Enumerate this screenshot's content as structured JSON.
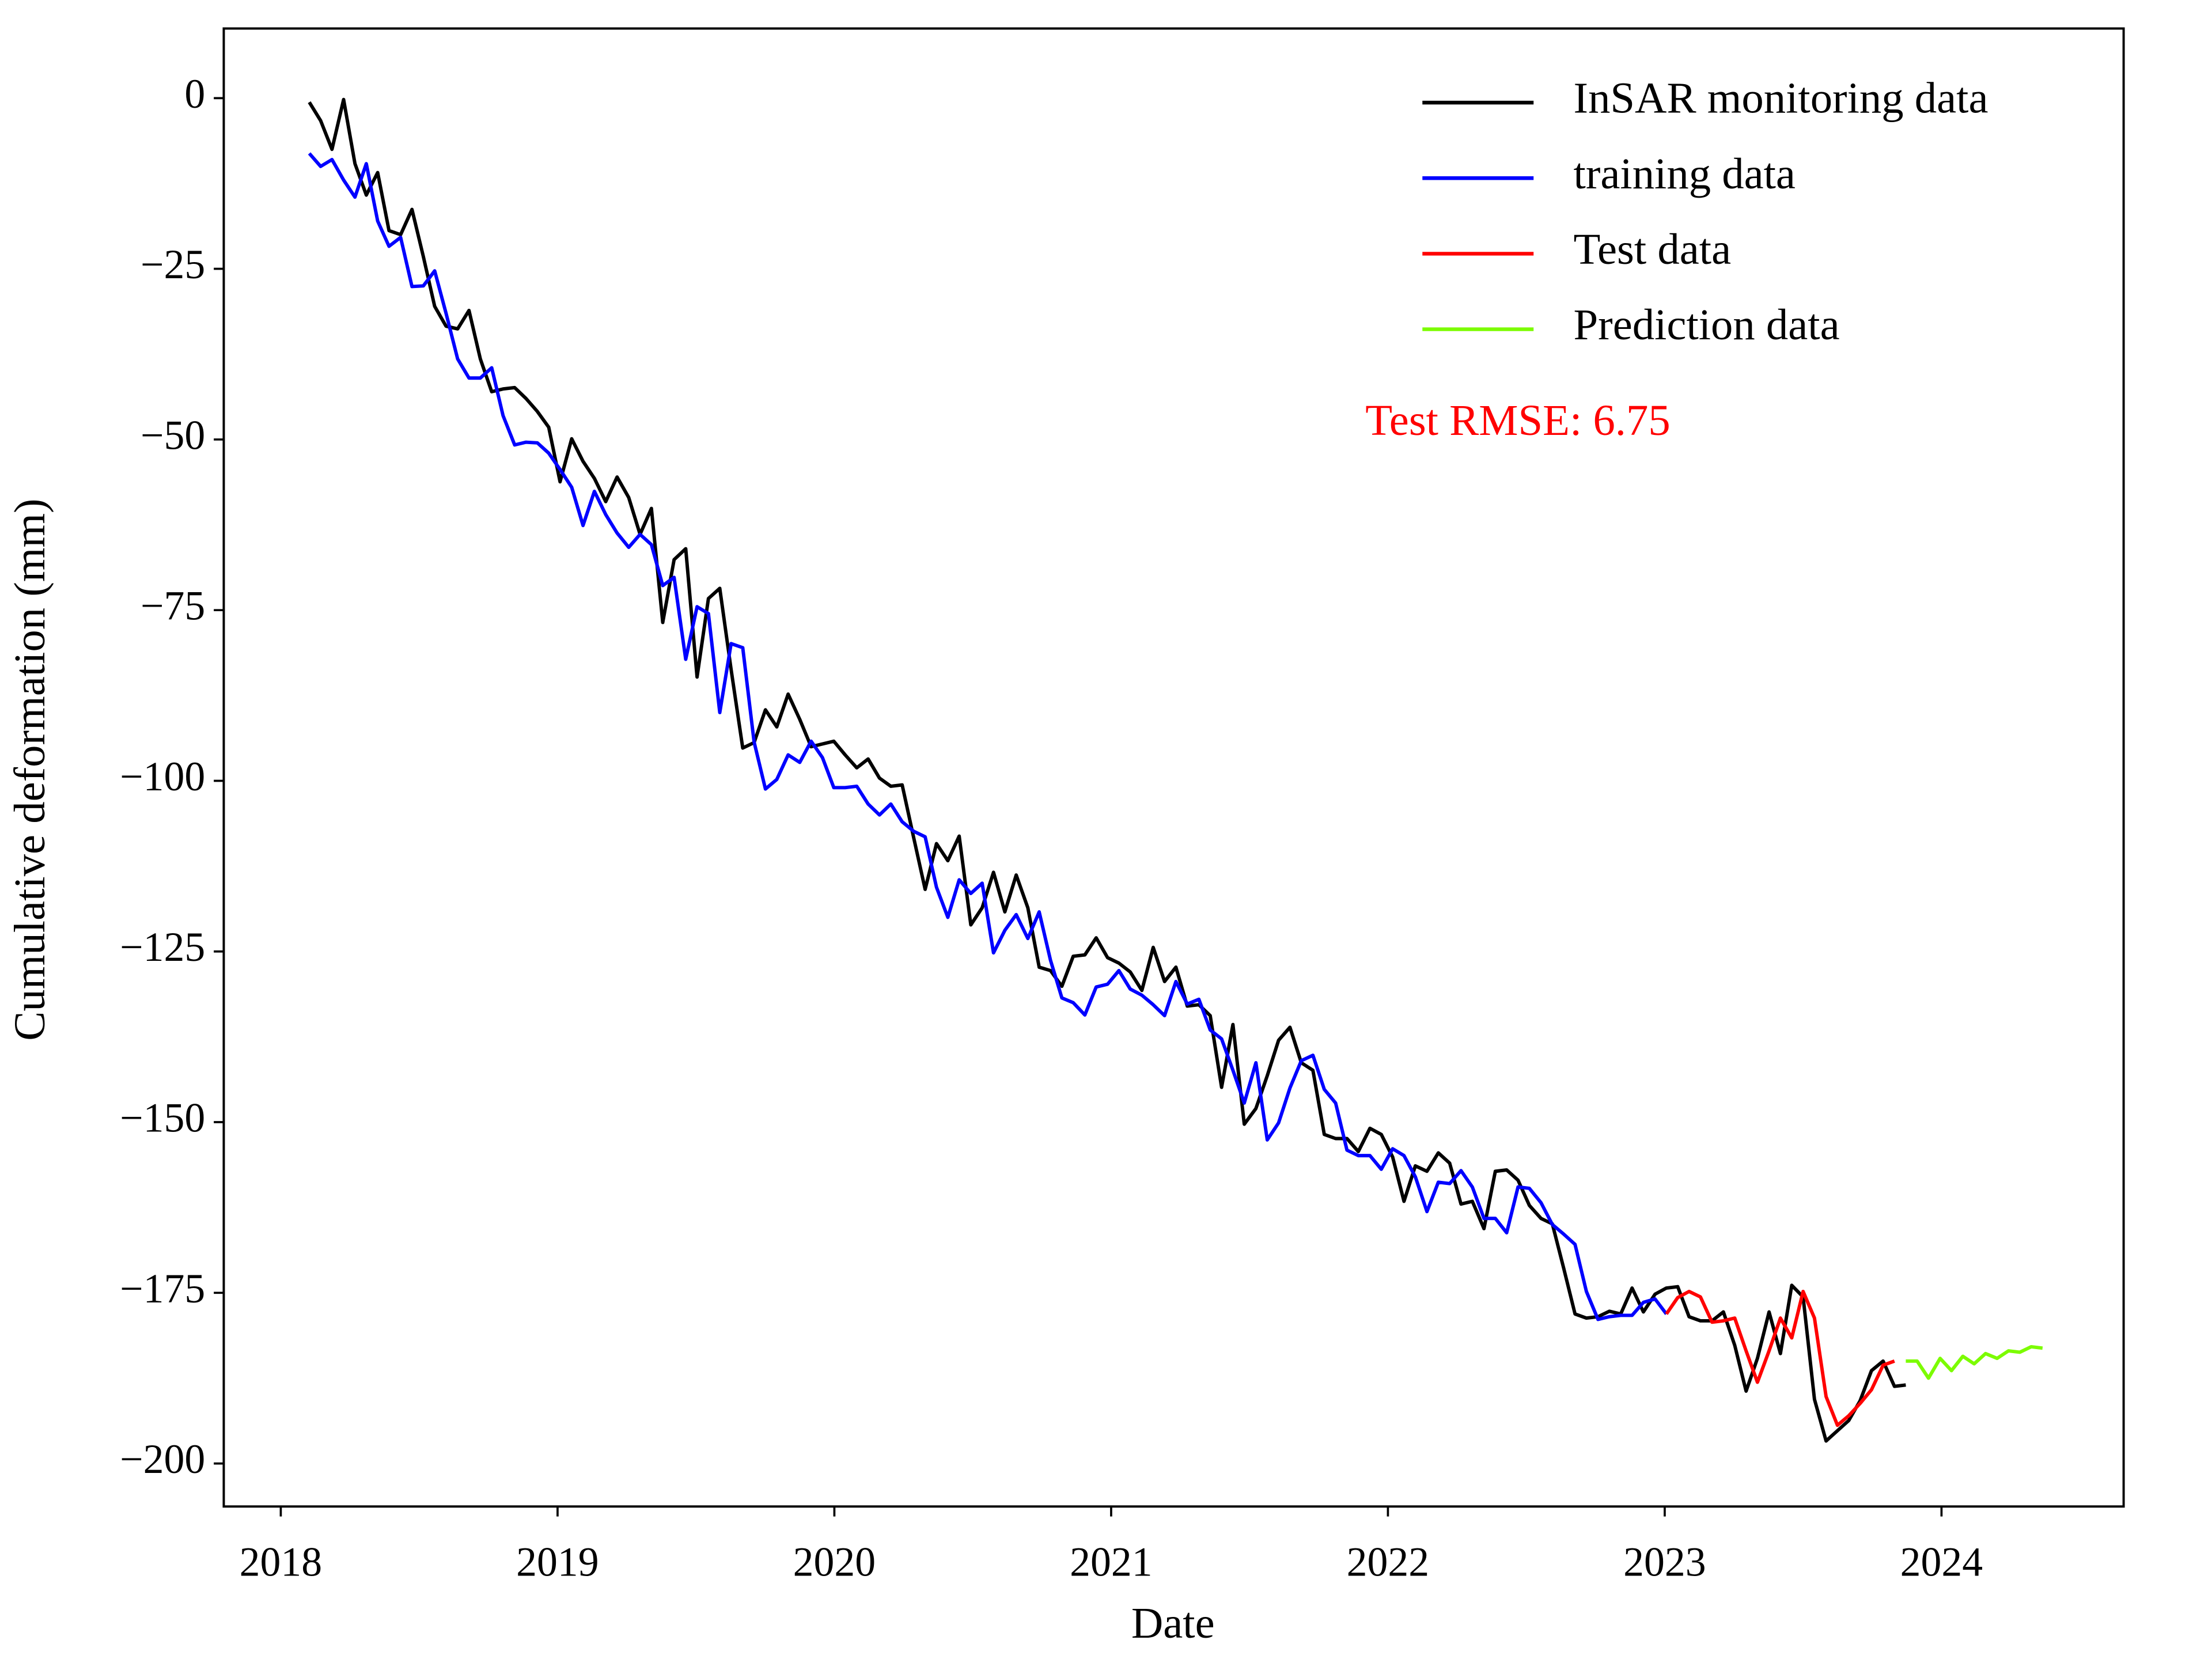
{
  "chart_data": {
    "type": "line",
    "xlabel": "Date",
    "ylabel": "Cumulative deformation (mm)",
    "annotation": "Test RMSE: 6.75",
    "annotation_color": "#ff0000",
    "legend": "upper right",
    "xlim": [
      2017.794,
      2024.658
    ],
    "xticks": [
      2018,
      2019,
      2020,
      2021,
      2022,
      2023,
      2024
    ],
    "ylim": [
      -206.3,
      10.2
    ],
    "yticks": [
      0,
      {
        "value": -25,
        "label": "−25"
      },
      {
        "value": -50,
        "label": "−50"
      },
      {
        "value": -75,
        "label": "−75"
      },
      {
        "value": -100,
        "label": "−100"
      },
      {
        "value": -125,
        "label": "−125"
      },
      {
        "value": -150,
        "label": "−150"
      },
      {
        "value": -175,
        "label": "−175"
      },
      {
        "value": -200,
        "label": "−200"
      }
    ],
    "x": [
      2018.103,
      2018.144,
      2018.185,
      2018.227,
      2018.268,
      2018.309,
      2018.35,
      2018.391,
      2018.433,
      2018.474,
      2018.515,
      2018.556,
      2018.597,
      2018.639,
      2018.68,
      2018.721,
      2018.762,
      2018.803,
      2018.845,
      2018.886,
      2018.927,
      2018.968,
      2019.009,
      2019.051,
      2019.092,
      2019.133,
      2019.174,
      2019.215,
      2019.257,
      2019.298,
      2019.339,
      2019.38,
      2019.421,
      2019.463,
      2019.504,
      2019.545,
      2019.586,
      2019.627,
      2019.669,
      2019.71,
      2019.751,
      2019.792,
      2019.833,
      2019.875,
      2019.916,
      2019.957,
      2019.998,
      2020.039,
      2020.081,
      2020.122,
      2020.163,
      2020.204,
      2020.245,
      2020.287,
      2020.328,
      2020.369,
      2020.41,
      2020.451,
      2020.493,
      2020.534,
      2020.575,
      2020.616,
      2020.657,
      2020.699,
      2020.74,
      2020.781,
      2020.822,
      2020.863,
      2020.905,
      2020.946,
      2020.987,
      2021.028,
      2021.069,
      2021.111,
      2021.152,
      2021.193,
      2021.234,
      2021.275,
      2021.317,
      2021.358,
      2021.399,
      2021.44,
      2021.481,
      2021.523,
      2021.564,
      2021.605,
      2021.646,
      2021.687,
      2021.729,
      2021.77,
      2021.811,
      2021.852,
      2021.893,
      2021.935,
      2021.976,
      2022.017,
      2022.058,
      2022.099,
      2022.141,
      2022.182,
      2022.223,
      2022.264,
      2022.305,
      2022.347,
      2022.388,
      2022.429,
      2022.47,
      2022.511,
      2022.553,
      2022.594,
      2022.635,
      2022.676,
      2022.717,
      2022.759,
      2022.8,
      2022.841,
      2022.882,
      2022.923,
      2022.965,
      2023.006,
      2023.047,
      2023.088,
      2023.129,
      2023.171,
      2023.212,
      2023.253,
      2023.294,
      2023.335,
      2023.377,
      2023.418,
      2023.459,
      2023.5,
      2023.541,
      2023.583,
      2023.624,
      2023.665,
      2023.706,
      2023.747,
      2023.789,
      2023.83,
      2023.871,
      2023.912,
      2023.953,
      2023.995,
      2024.036,
      2024.077,
      2024.118,
      2024.159,
      2024.201,
      2024.242,
      2024.283,
      2024.324,
      2024.365
    ],
    "series": [
      {
        "name": "InSAR monitoring data",
        "color": "#000000",
        "values": [
          -0.6,
          -3.3,
          -7.5,
          -0.2,
          -9.6,
          -14.2,
          -10.9,
          -19.4,
          -20,
          -16.3,
          -23.2,
          -30.5,
          -33.4,
          -33.8,
          -31.1,
          -38.2,
          -43,
          -42.6,
          -42.4,
          -44,
          -45.9,
          -48.2,
          -56.2,
          -49.9,
          -53.2,
          -55.7,
          -59.1,
          -55.5,
          -58.5,
          -63.9,
          -60.1,
          -76.8,
          -67.6,
          -66,
          -84.8,
          -73.3,
          -71.8,
          -83.7,
          -95.2,
          -94.4,
          -89.6,
          -92.1,
          -87.3,
          -91,
          -95,
          -94.6,
          -94.2,
          -96.2,
          -98.1,
          -96.8,
          -99.6,
          -100.8,
          -100.6,
          -108.4,
          -115.9,
          -109.2,
          -111.7,
          -108.1,
          -121.1,
          -118.6,
          -113.4,
          -119.2,
          -113.8,
          -118.6,
          -127.3,
          -127.8,
          -130.1,
          -125.7,
          -125.5,
          -123,
          -125.9,
          -126.7,
          -128,
          -130.7,
          -124.4,
          -129.4,
          -127.3,
          -133,
          -132.8,
          -134.4,
          -144.9,
          -135.7,
          -150.3,
          -148,
          -143.2,
          -138,
          -136.1,
          -141.3,
          -142.4,
          -151.8,
          -152.4,
          -152.4,
          -154.3,
          -150.9,
          -151.8,
          -155.1,
          -161.6,
          -156.4,
          -157.2,
          -154.5,
          -156,
          -162,
          -161.6,
          -165.6,
          -157.2,
          -157,
          -158.5,
          -162.2,
          -164.1,
          -164.9,
          -171.4,
          -178.1,
          -178.7,
          -178.5,
          -177.7,
          -178.1,
          -174.3,
          -177.8,
          -175.2,
          -174.3,
          -174.1,
          -178.5,
          -179.1,
          -179.1,
          -177.8,
          -182.7,
          -189.4,
          -184.6,
          -177.8,
          -183.9,
          -173.9,
          -175.6,
          -190.6,
          -196.7,
          -195.2,
          -193.7,
          -190.8,
          -186.4,
          -185,
          -188.7,
          -188.5,
          null,
          null,
          null,
          null,
          null,
          null,
          null,
          null,
          null,
          null,
          null,
          null
        ]
      },
      {
        "name": "training data",
        "color": "#0000ff",
        "values": [
          -8.1,
          -10,
          -9,
          -12,
          -14.5,
          -9.6,
          -18,
          -21.7,
          -20.4,
          -27.6,
          -27.5,
          -25.3,
          -31.5,
          -38.2,
          -41,
          -41,
          -39.5,
          -46.5,
          -50.8,
          -50.4,
          -50.5,
          -52,
          -54.4,
          -57,
          -62.6,
          -57.6,
          -61,
          -63.7,
          -65.8,
          -63.9,
          -65.4,
          -71.4,
          -70.2,
          -82.2,
          -74.5,
          -75.5,
          -90,
          -79.9,
          -80.5,
          -94.3,
          -101.2,
          -99.8,
          -96.2,
          -97.3,
          -94.2,
          -96.6,
          -101,
          -101,
          -100.8,
          -103.4,
          -105,
          -103.4,
          -106,
          -107.4,
          -108.2,
          -115.6,
          -120,
          -114.5,
          -116.5,
          -115,
          -125.2,
          -121.9,
          -119.6,
          -123.1,
          -119.2,
          -126.3,
          -131.8,
          -132.5,
          -134.3,
          -130.2,
          -129.8,
          -127.8,
          -130.5,
          -131.4,
          -132.8,
          -134.4,
          -129.4,
          -132.7,
          -132,
          -136.5,
          -137.8,
          -142.4,
          -147.2,
          -141.3,
          -152.6,
          -150.1,
          -145,
          -141,
          -140.2,
          -145.2,
          -147.2,
          -154.1,
          -154.9,
          -154.9,
          -156.9,
          -153.9,
          -154.9,
          -158,
          -163.1,
          -158.8,
          -159,
          -157.1,
          -159.5,
          -164.1,
          -164.1,
          -166.2,
          -159.5,
          -159.7,
          -161.8,
          -165,
          -166.4,
          -167.9,
          -174.8,
          -178.9,
          -178.5,
          -178.3,
          -178.3,
          -176.4,
          -175.9,
          -178.1,
          null,
          null,
          null,
          null,
          null,
          null,
          null,
          null,
          null,
          null,
          null,
          null,
          null,
          null,
          null,
          null,
          null,
          null,
          null,
          null,
          null,
          null,
          null,
          null,
          null,
          null,
          null,
          null,
          null,
          null,
          null,
          null,
          null
        ]
      },
      {
        "name": "Test data",
        "color": "#ff0000",
        "values": [
          null,
          null,
          null,
          null,
          null,
          null,
          null,
          null,
          null,
          null,
          null,
          null,
          null,
          null,
          null,
          null,
          null,
          null,
          null,
          null,
          null,
          null,
          null,
          null,
          null,
          null,
          null,
          null,
          null,
          null,
          null,
          null,
          null,
          null,
          null,
          null,
          null,
          null,
          null,
          null,
          null,
          null,
          null,
          null,
          null,
          null,
          null,
          null,
          null,
          null,
          null,
          null,
          null,
          null,
          null,
          null,
          null,
          null,
          null,
          null,
          null,
          null,
          null,
          null,
          null,
          null,
          null,
          null,
          null,
          null,
          null,
          null,
          null,
          null,
          null,
          null,
          null,
          null,
          null,
          null,
          null,
          null,
          null,
          null,
          null,
          null,
          null,
          null,
          null,
          null,
          null,
          null,
          null,
          null,
          null,
          null,
          null,
          null,
          null,
          null,
          null,
          null,
          null,
          null,
          null,
          null,
          null,
          null,
          null,
          null,
          null,
          null,
          null,
          null,
          null,
          null,
          null,
          null,
          null,
          -178.1,
          -175.7,
          -174.8,
          -175.6,
          -179.3,
          -179.1,
          -178.7,
          -183.5,
          -188.1,
          -183.5,
          -178.7,
          -181.6,
          -174.8,
          -178.7,
          -190.2,
          -194.4,
          -193,
          -191.2,
          -189.2,
          -185.6,
          -185,
          null,
          null,
          null,
          null,
          null,
          null,
          null,
          null,
          null,
          null,
          null,
          null,
          null
        ]
      },
      {
        "name": "Prediction data",
        "color": "#7cfc00",
        "values": [
          null,
          null,
          null,
          null,
          null,
          null,
          null,
          null,
          null,
          null,
          null,
          null,
          null,
          null,
          null,
          null,
          null,
          null,
          null,
          null,
          null,
          null,
          null,
          null,
          null,
          null,
          null,
          null,
          null,
          null,
          null,
          null,
          null,
          null,
          null,
          null,
          null,
          null,
          null,
          null,
          null,
          null,
          null,
          null,
          null,
          null,
          null,
          null,
          null,
          null,
          null,
          null,
          null,
          null,
          null,
          null,
          null,
          null,
          null,
          null,
          null,
          null,
          null,
          null,
          null,
          null,
          null,
          null,
          null,
          null,
          null,
          null,
          null,
          null,
          null,
          null,
          null,
          null,
          null,
          null,
          null,
          null,
          null,
          null,
          null,
          null,
          null,
          null,
          null,
          null,
          null,
          null,
          null,
          null,
          null,
          null,
          null,
          null,
          null,
          null,
          null,
          null,
          null,
          null,
          null,
          null,
          null,
          null,
          null,
          null,
          null,
          null,
          null,
          null,
          null,
          null,
          null,
          null,
          null,
          null,
          null,
          null,
          null,
          null,
          null,
          null,
          null,
          null,
          null,
          null,
          null,
          null,
          null,
          null,
          null,
          null,
          null,
          null,
          null,
          null,
          -185,
          -185,
          -187.5,
          -184.6,
          -186.4,
          -184.3,
          -185.4,
          -183.9,
          -184.6,
          -183.5,
          -183.7,
          -182.9,
          -183.1
        ]
      }
    ]
  }
}
